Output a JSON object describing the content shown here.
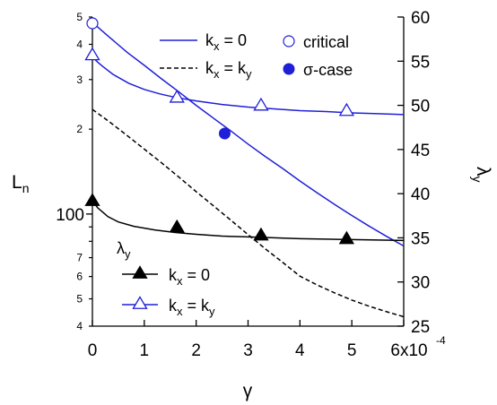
{
  "chart_data": {
    "type": "line",
    "x_axis": {
      "label": "γ",
      "range": [
        0,
        0.0006
      ],
      "ticks": [
        0,
        0.0001,
        0.0002,
        0.0003,
        0.0004,
        0.0005,
        0.0006
      ],
      "tick_labels": [
        "0",
        "1",
        "2",
        "3",
        "4",
        "5",
        "6x10"
      ],
      "exponent_label": "-4"
    },
    "y_left": {
      "label": "L",
      "label_subscript": "n",
      "scale": "log",
      "range": [
        40,
        500
      ],
      "major_tick": {
        "value": 100,
        "label": "100"
      },
      "minor_ticks": [
        {
          "value": 40,
          "label": "4"
        },
        {
          "value": 50,
          "label": "5"
        },
        {
          "value": 60,
          "label": "6"
        },
        {
          "value": 70,
          "label": "7"
        },
        {
          "value": 80,
          "label": ""
        },
        {
          "value": 90,
          "label": ""
        },
        {
          "value": 200,
          "label": "2"
        },
        {
          "value": 300,
          "label": "3"
        },
        {
          "value": 400,
          "label": "4"
        },
        {
          "value": 500,
          "label": "5"
        }
      ]
    },
    "y_right": {
      "label": "λ",
      "label_subscript": "y",
      "range": [
        25,
        60
      ],
      "ticks": [
        25,
        30,
        35,
        40,
        45,
        50,
        55,
        60
      ],
      "tick_labels": [
        "25",
        "30",
        "35",
        "40",
        "45",
        "50",
        "55",
        "60"
      ]
    },
    "series": [
      {
        "name": "k_x = 0",
        "axis": "left",
        "style": "solid",
        "color": "#1f1fd8",
        "x": [
          0,
          3.33e-05,
          6.67e-05,
          0.0001,
          0.000133,
          0.000167,
          0.0002,
          0.000233,
          0.000267,
          0.0003,
          0.000333,
          0.000367,
          0.0004,
          0.000433,
          0.000467,
          0.0005,
          0.000533,
          0.000567,
          0.0006
        ],
        "y": [
          478,
          423,
          375,
          337,
          302,
          271,
          243,
          219,
          197,
          177,
          160,
          145,
          131,
          119,
          108,
          98.8,
          90.6,
          83.3,
          77
        ]
      },
      {
        "name": "k_x = k_y",
        "axis": "left",
        "style": "dashed",
        "color": "#000000",
        "x": [
          0,
          3.33e-05,
          6.67e-05,
          0.0001,
          0.000133,
          0.000167,
          0.0002,
          0.000233,
          0.000267,
          0.0003,
          0.000333,
          0.000367,
          0.0004,
          0.000433,
          0.000467,
          0.0005,
          0.000533,
          0.000567,
          0.0006
        ],
        "y": [
          235,
          212,
          190,
          170,
          152,
          135,
          120,
          107,
          95,
          84.5,
          75.3,
          67.3,
          60.2,
          56,
          52.5,
          49.5,
          47.1,
          45,
          43.2
        ]
      },
      {
        "name": "λ_y, k_x = 0",
        "axis": "right",
        "style": "solid",
        "color": "#000000",
        "x": [
          0,
          1e-05,
          2e-05,
          3e-05,
          5e-05,
          8e-05,
          0.00012,
          0.00016,
          0.0002,
          0.00025,
          0.0003,
          0.00035,
          0.0004,
          0.00045,
          0.0005,
          0.00055,
          0.0006
        ],
        "y": [
          39.2,
          38.4,
          37.9,
          37.4,
          36.8,
          36.3,
          35.9,
          35.6,
          35.4,
          35.2,
          35.1,
          35.0,
          34.9,
          34.85,
          34.8,
          34.75,
          34.7
        ]
      },
      {
        "name": "λ_y, k_x = k_y",
        "axis": "right",
        "style": "solid",
        "color": "#1f1fd8",
        "x": [
          0,
          1e-05,
          2e-05,
          4e-05,
          7e-05,
          0.0001,
          0.00013,
          0.00016,
          0.0002,
          0.00025,
          0.0003,
          0.00035,
          0.0004,
          0.00045,
          0.0005,
          0.00055,
          0.0006
        ],
        "y": [
          55.5,
          54.9,
          54.4,
          53.5,
          52.5,
          51.8,
          51.3,
          50.9,
          50.5,
          50.1,
          49.8,
          49.6,
          49.4,
          49.3,
          49.15,
          49.05,
          48.95
        ]
      }
    ],
    "markers": [
      {
        "series": "critical",
        "axis": "left",
        "shape": "circle-open",
        "color": "#1f1fd8",
        "x": 0,
        "y": 475
      },
      {
        "series": "σ-case",
        "axis": "left",
        "shape": "circle-filled",
        "color": "#1f1fd8",
        "x": 0.000255,
        "y": 193
      },
      {
        "series": "λ_y, k_x = 0",
        "axis": "right",
        "shape": "triangle-filled",
        "color": "#000000",
        "x": [
          0,
          0.000163,
          0.000325,
          0.00049
        ],
        "y": [
          39.2,
          36.2,
          35.3,
          34.9
        ]
      },
      {
        "series": "λ_y, k_x = k_y",
        "axis": "right",
        "shape": "triangle-open",
        "color": "#1f1fd8",
        "x": [
          0,
          0.000163,
          0.000325,
          0.00049
        ],
        "y": [
          55.7,
          50.9,
          50.0,
          49.4
        ]
      }
    ],
    "legend_top": {
      "position": "top-center",
      "entries": [
        {
          "label_main": "k",
          "label_sub": "x",
          "label_rest": " = 0",
          "style": "line-solid",
          "color": "#1f1fd8"
        },
        {
          "label_main": "k",
          "label_sub": "x",
          "label_rest": " = k",
          "label_sub2": "y",
          "style": "line-dashed",
          "color": "#000000"
        },
        {
          "label_main": "critical",
          "style": "circle-open",
          "color": "#1f1fd8"
        },
        {
          "label_main": "σ-case",
          "style": "circle-filled",
          "color": "#1f1fd8"
        }
      ]
    },
    "legend_bottom": {
      "position": "bottom-left",
      "title_main": "λ",
      "title_sub": "y",
      "entries": [
        {
          "label_main": "k",
          "label_sub": "x",
          "label_rest": " = 0",
          "style": "line-triangle-filled",
          "color": "#000000"
        },
        {
          "label_main": "k",
          "label_sub": "x",
          "label_rest": " = k",
          "label_sub2": "y",
          "style": "line-triangle-open",
          "color": "#1f1fd8"
        }
      ]
    },
    "grid": false
  }
}
